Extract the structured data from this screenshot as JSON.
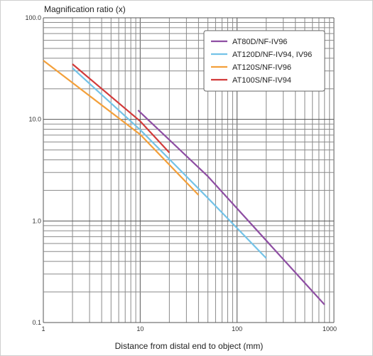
{
  "chart_data": {
    "type": "line",
    "title": "",
    "ylabel": "Magnification ratio (x)",
    "xlabel": "Distance from distal end to object (mm)",
    "x_scale": "log",
    "y_scale": "log",
    "xlim": [
      1,
      1000
    ],
    "ylim": [
      0.1,
      100
    ],
    "x_ticks": [
      {
        "value": 1,
        "label": "1"
      },
      {
        "value": 10,
        "label": "10"
      },
      {
        "value": 100,
        "label": "100"
      },
      {
        "value": 1000,
        "label": "1000"
      }
    ],
    "y_ticks": [
      {
        "value": 100,
        "label": "100.0"
      },
      {
        "value": 10,
        "label": "10.0"
      },
      {
        "value": 1,
        "label": "1.0"
      },
      {
        "value": 0.1,
        "label": "0.1"
      }
    ],
    "grid": true,
    "legend_position": "top-right",
    "series": [
      {
        "name": "AT80D/NF-IV96",
        "color": "#8e4ea3",
        "points": [
          [
            9.5,
            12.3
          ],
          [
            50,
            2.75
          ],
          [
            800,
            0.15
          ]
        ]
      },
      {
        "name": "AT120D/NF-IV94, IV96",
        "color": "#74c3e8",
        "points": [
          [
            2,
            32
          ],
          [
            10,
            7.9
          ],
          [
            50,
            1.68
          ],
          [
            200,
            0.43
          ]
        ]
      },
      {
        "name": "AT120S/NF-IV96",
        "color": "#f3a03b",
        "points": [
          [
            1,
            38
          ],
          [
            10,
            7.1
          ],
          [
            40,
            1.8
          ]
        ]
      },
      {
        "name": "AT100S/NF-IV94",
        "color": "#d23a3a",
        "points": [
          [
            2,
            35
          ],
          [
            10,
            9.6
          ],
          [
            20,
            4.7
          ]
        ]
      }
    ]
  }
}
